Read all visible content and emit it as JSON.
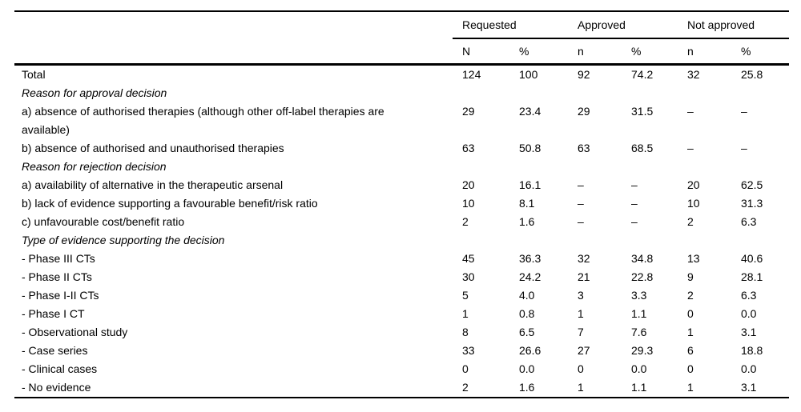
{
  "table": {
    "column_groups": [
      {
        "label": "Requested"
      },
      {
        "label": "Approved"
      },
      {
        "label": "Not approved"
      }
    ],
    "sub_headers": [
      "N",
      "%",
      "n",
      "%",
      "n",
      "%"
    ],
    "rows": [
      {
        "label": "Total",
        "style": "normal",
        "values": [
          "124",
          "100",
          "92",
          "74.2",
          "32",
          "25.8"
        ]
      },
      {
        "label": "Reason for approval decision",
        "style": "section",
        "values": [
          "",
          "",
          "",
          "",
          "",
          ""
        ]
      },
      {
        "label": "a) absence of authorised therapies (although other off-label therapies are available)",
        "style": "normal",
        "values": [
          "29",
          "23.4",
          "29",
          "31.5",
          "–",
          "–"
        ]
      },
      {
        "label": "b) absence of authorised and unauthorised therapies",
        "style": "normal",
        "values": [
          "63",
          "50.8",
          "63",
          "68.5",
          "–",
          "–"
        ]
      },
      {
        "label": "Reason for rejection decision",
        "style": "section",
        "values": [
          "",
          "",
          "",
          "",
          "",
          ""
        ]
      },
      {
        "label": "a) availability of alternative in the therapeutic arsenal",
        "style": "normal",
        "values": [
          "20",
          "16.1",
          "–",
          "–",
          "20",
          "62.5"
        ]
      },
      {
        "label": "b) lack of evidence supporting a favourable benefit/risk ratio",
        "style": "normal",
        "values": [
          "10",
          "8.1",
          "–",
          "–",
          "10",
          "31.3"
        ]
      },
      {
        "label": "c) unfavourable cost/benefit ratio",
        "style": "normal",
        "values": [
          "2",
          "1.6",
          "–",
          "–",
          "2",
          "6.3"
        ]
      },
      {
        "label": "Type of evidence supporting the decision",
        "style": "section",
        "values": [
          "",
          "",
          "",
          "",
          "",
          ""
        ]
      },
      {
        "label": "- Phase III CTs",
        "style": "normal",
        "values": [
          "45",
          "36.3",
          "32",
          "34.8",
          "13",
          "40.6"
        ]
      },
      {
        "label": "- Phase II CTs",
        "style": "normal",
        "values": [
          "30",
          "24.2",
          "21",
          "22.8",
          "9",
          "28.1"
        ]
      },
      {
        "label": "- Phase I-II CTs",
        "style": "normal",
        "values": [
          "5",
          "4.0",
          "3",
          "3.3",
          "2",
          "6.3"
        ]
      },
      {
        "label": "- Phase I CT",
        "style": "normal",
        "values": [
          "1",
          "0.8",
          "1",
          "1.1",
          "0",
          "0.0"
        ]
      },
      {
        "label": "- Observational study",
        "style": "normal",
        "values": [
          "8",
          "6.5",
          "7",
          "7.6",
          "1",
          "3.1"
        ]
      },
      {
        "label": "- Case series",
        "style": "normal",
        "values": [
          "33",
          "26.6",
          "27",
          "29.3",
          "6",
          "18.8"
        ]
      },
      {
        "label": "- Clinical cases",
        "style": "normal",
        "values": [
          "0",
          "0.0",
          "0",
          "0.0",
          "0",
          "0.0"
        ]
      },
      {
        "label": "- No evidence",
        "style": "normal",
        "values": [
          "2",
          "1.6",
          "1",
          "1.1",
          "1",
          "3.1"
        ]
      }
    ]
  }
}
